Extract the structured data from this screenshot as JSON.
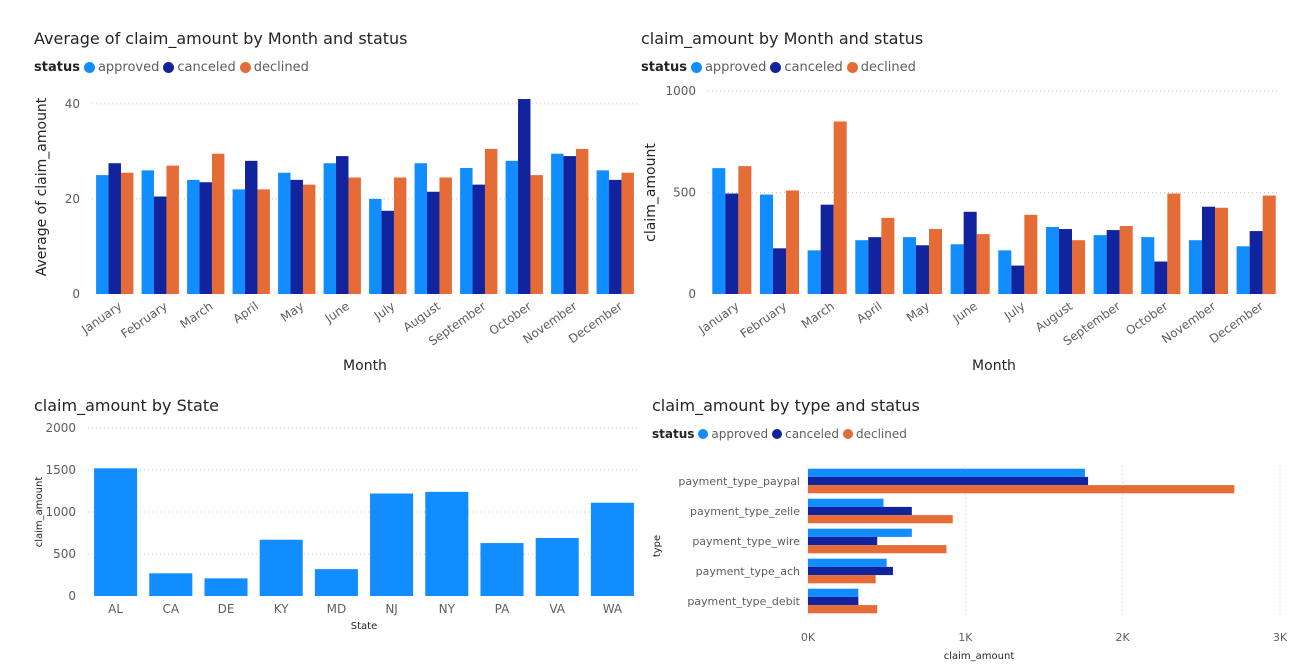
{
  "colors": {
    "approved": "#118dff",
    "canceled": "#12239e",
    "declined": "#e66c37",
    "grid": "#c8c6c4",
    "text": "#605e5c",
    "title": "#252423"
  },
  "chart_data": [
    {
      "id": "avg-by-month",
      "type": "bar",
      "title": "Average of claim_amount by Month and status",
      "legend_title": "status",
      "xlabel": "Month",
      "ylabel": "Average of claim_amount",
      "ylim": [
        0,
        45
      ],
      "yticks": [
        0,
        20,
        40
      ],
      "categories": [
        "January",
        "February",
        "March",
        "April",
        "May",
        "June",
        "July",
        "August",
        "September",
        "October",
        "November",
        "December"
      ],
      "series": [
        {
          "name": "approved",
          "values": [
            25,
            26,
            24,
            22,
            25.5,
            27.5,
            20,
            27.5,
            26.5,
            28,
            29.5,
            26
          ]
        },
        {
          "name": "canceled",
          "values": [
            27.5,
            20.5,
            23.5,
            28,
            24,
            29,
            17.5,
            21.5,
            23,
            41,
            29,
            24
          ]
        },
        {
          "name": "declined",
          "values": [
            25.5,
            27,
            29.5,
            22,
            23,
            24.5,
            24.5,
            24.5,
            30.5,
            25,
            30.5,
            25.5
          ]
        }
      ]
    },
    {
      "id": "sum-by-month",
      "type": "bar",
      "title": "claim_amount by Month and status",
      "legend_title": "status",
      "xlabel": "Month",
      "ylabel": "claim_amount",
      "ylim": [
        0,
        1000
      ],
      "yticks": [
        0,
        500,
        1000
      ],
      "categories": [
        "January",
        "February",
        "March",
        "April",
        "May",
        "June",
        "July",
        "August",
        "September",
        "October",
        "November",
        "December"
      ],
      "series": [
        {
          "name": "approved",
          "values": [
            620,
            490,
            215,
            265,
            280,
            245,
            215,
            330,
            290,
            280,
            265,
            235
          ]
        },
        {
          "name": "canceled",
          "values": [
            495,
            225,
            440,
            280,
            240,
            405,
            140,
            320,
            315,
            160,
            430,
            310
          ]
        },
        {
          "name": "declined",
          "values": [
            630,
            510,
            850,
            375,
            320,
            295,
            390,
            265,
            335,
            495,
            425,
            485
          ]
        }
      ]
    },
    {
      "id": "by-state",
      "type": "bar",
      "title": "claim_amount by State",
      "xlabel": "State",
      "ylabel": "claim_amount",
      "ylim": [
        0,
        2000
      ],
      "yticks": [
        0,
        500,
        1000,
        1500,
        2000
      ],
      "categories": [
        "AL",
        "CA",
        "DE",
        "KY",
        "MD",
        "NJ",
        "NY",
        "PA",
        "VA",
        "WA"
      ],
      "values": [
        1520,
        270,
        210,
        670,
        320,
        1220,
        1240,
        630,
        690,
        1110
      ]
    },
    {
      "id": "by-type",
      "type": "bar",
      "orientation": "horizontal",
      "title": "claim_amount by type and status",
      "legend_title": "status",
      "xlabel": "claim_amount",
      "ylabel": "type",
      "xlim": [
        0,
        3000
      ],
      "xticks": [
        0,
        1000,
        2000,
        3000
      ],
      "xtick_labels": [
        "0K",
        "1K",
        "2K",
        "3K"
      ],
      "categories": [
        "payment_type_paypal",
        "payment_type_zelle",
        "payment_type_wire",
        "payment_type_ach",
        "payment_type_debit"
      ],
      "series": [
        {
          "name": "approved",
          "values": [
            1760,
            480,
            660,
            500,
            320
          ]
        },
        {
          "name": "canceled",
          "values": [
            1780,
            660,
            440,
            540,
            320
          ]
        },
        {
          "name": "declined",
          "values": [
            2710,
            920,
            880,
            430,
            440
          ]
        }
      ]
    }
  ]
}
